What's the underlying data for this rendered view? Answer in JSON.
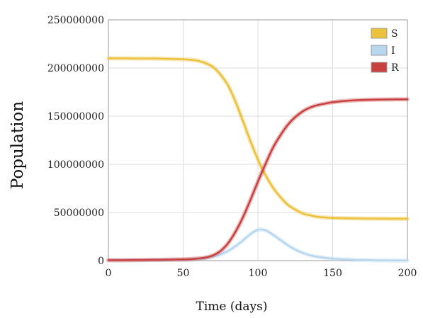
{
  "chart_data": {
    "type": "line",
    "xlabel": "Time (days)",
    "ylabel": "Population",
    "xlim": [
      0,
      200
    ],
    "ylim": [
      0,
      250000000
    ],
    "xticks": [
      0,
      50,
      100,
      150,
      200
    ],
    "yticks": [
      0,
      50000000,
      100000000,
      150000000,
      200000000,
      250000000
    ],
    "grid": true,
    "legend_position": "top-right",
    "x": [
      0,
      10,
      20,
      30,
      40,
      50,
      55,
      60,
      65,
      70,
      75,
      80,
      85,
      90,
      95,
      100,
      105,
      110,
      115,
      120,
      125,
      130,
      135,
      140,
      145,
      150,
      160,
      170,
      180,
      190,
      200
    ],
    "series": [
      {
        "name": "S",
        "color": "#ecc13b",
        "values": [
          210000000,
          210000000,
          209800000,
          209800000,
          209500000,
          209000000,
          208500000,
          207500000,
          205000000,
          201000000,
          193000000,
          182000000,
          165000000,
          145000000,
          124000000,
          105000000,
          89000000,
          76000000,
          66000000,
          58000000,
          53000000,
          49000000,
          47000000,
          45500000,
          44800000,
          44300000,
          43900000,
          43700000,
          43600000,
          43500000,
          43500000
        ]
      },
      {
        "name": "I",
        "color": "#b9d6ef",
        "values": [
          500000,
          500000,
          500000,
          500000,
          600000,
          900000,
          1200000,
          1700000,
          2500000,
          4000000,
          6500000,
          10000000,
          15000000,
          21000000,
          27500000,
          32000000,
          31500000,
          27000000,
          21500000,
          16000000,
          11500000,
          8000000,
          5500000,
          4000000,
          2800000,
          2000000,
          1100000,
          600000,
          300000,
          200000,
          100000
        ]
      },
      {
        "name": "R",
        "color": "#c94040",
        "values": [
          500000,
          500000,
          600000,
          800000,
          1000000,
          1300000,
          1600000,
          2200000,
          3200000,
          5500000,
          10000000,
          18000000,
          30000000,
          45000000,
          63000000,
          82000000,
          100000000,
          117000000,
          130000000,
          141000000,
          149000000,
          155000000,
          159000000,
          161500000,
          163000000,
          164500000,
          166000000,
          166800000,
          167200000,
          167400000,
          167500000
        ]
      }
    ]
  }
}
